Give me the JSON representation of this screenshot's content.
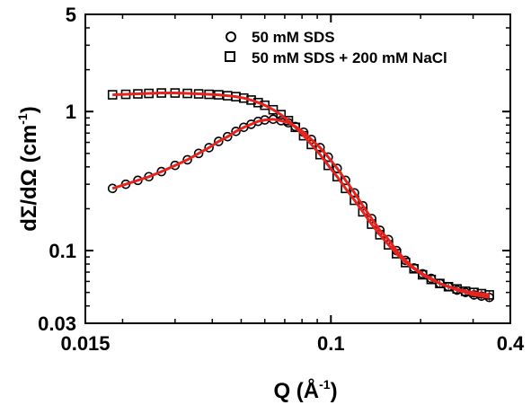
{
  "chart_data": {
    "type": "scatter",
    "xscale": "log",
    "yscale": "log",
    "xlim": [
      0.015,
      0.4
    ],
    "ylim": [
      0.03,
      5
    ],
    "x_ticks": [
      {
        "value": 0.015,
        "label": "0.015"
      },
      {
        "value": 0.1,
        "label": "0.1"
      },
      {
        "value": 0.4,
        "label": "0.4"
      }
    ],
    "y_ticks": [
      {
        "value": 0.03,
        "label": "0.03"
      },
      {
        "value": 0.1,
        "label": "0.1"
      },
      {
        "value": 1,
        "label": "1"
      },
      {
        "value": 5,
        "label": "5"
      }
    ],
    "xlabel": "Q (Å⁻¹)",
    "xlabel_main": "Q (Å",
    "xlabel_sup": "-1",
    "xlabel_end": ")",
    "ylabel": "dΣ/dΩ (cm⁻¹)",
    "ylabel_main": "dΣ/dΩ (cm",
    "ylabel_sup": "-1",
    "ylabel_end": ")",
    "legend_position": "top-right",
    "fit_color": "#e8221c",
    "series": [
      {
        "name": "50 mM SDS",
        "marker": "circle",
        "x": [
          0.0185,
          0.0205,
          0.0225,
          0.0245,
          0.027,
          0.03,
          0.033,
          0.036,
          0.039,
          0.042,
          0.045,
          0.048,
          0.051,
          0.054,
          0.057,
          0.06,
          0.064,
          0.068,
          0.072,
          0.076,
          0.081,
          0.086,
          0.092,
          0.098,
          0.105,
          0.112,
          0.12,
          0.128,
          0.137,
          0.146,
          0.156,
          0.166,
          0.178,
          0.19,
          0.203,
          0.217,
          0.232,
          0.248,
          0.265,
          0.283,
          0.302,
          0.32,
          0.34
        ],
        "y": [
          0.28,
          0.3,
          0.32,
          0.34,
          0.37,
          0.41,
          0.45,
          0.5,
          0.55,
          0.61,
          0.66,
          0.72,
          0.77,
          0.81,
          0.85,
          0.87,
          0.88,
          0.86,
          0.83,
          0.78,
          0.71,
          0.63,
          0.55,
          0.47,
          0.39,
          0.32,
          0.26,
          0.21,
          0.17,
          0.14,
          0.12,
          0.1,
          0.085,
          0.075,
          0.068,
          0.063,
          0.058,
          0.055,
          0.052,
          0.05,
          0.048,
          0.047,
          0.046
        ]
      },
      {
        "name": "50 mM SDS + 200 mM NaCl",
        "marker": "square",
        "x": [
          0.0185,
          0.0205,
          0.0225,
          0.0245,
          0.027,
          0.03,
          0.033,
          0.036,
          0.039,
          0.042,
          0.045,
          0.048,
          0.051,
          0.054,
          0.057,
          0.06,
          0.064,
          0.068,
          0.072,
          0.076,
          0.081,
          0.086,
          0.092,
          0.098,
          0.105,
          0.112,
          0.12,
          0.128,
          0.137,
          0.146,
          0.156,
          0.166,
          0.178,
          0.19,
          0.203,
          0.217,
          0.232,
          0.248,
          0.265,
          0.283,
          0.302,
          0.32,
          0.34
        ],
        "y": [
          1.32,
          1.33,
          1.34,
          1.35,
          1.36,
          1.36,
          1.35,
          1.34,
          1.33,
          1.32,
          1.3,
          1.28,
          1.25,
          1.21,
          1.16,
          1.11,
          1.03,
          0.95,
          0.86,
          0.77,
          0.67,
          0.58,
          0.49,
          0.41,
          0.34,
          0.28,
          0.23,
          0.19,
          0.155,
          0.13,
          0.11,
          0.095,
          0.082,
          0.074,
          0.067,
          0.062,
          0.058,
          0.055,
          0.053,
          0.051,
          0.05,
          0.049,
          0.048
        ]
      }
    ]
  }
}
